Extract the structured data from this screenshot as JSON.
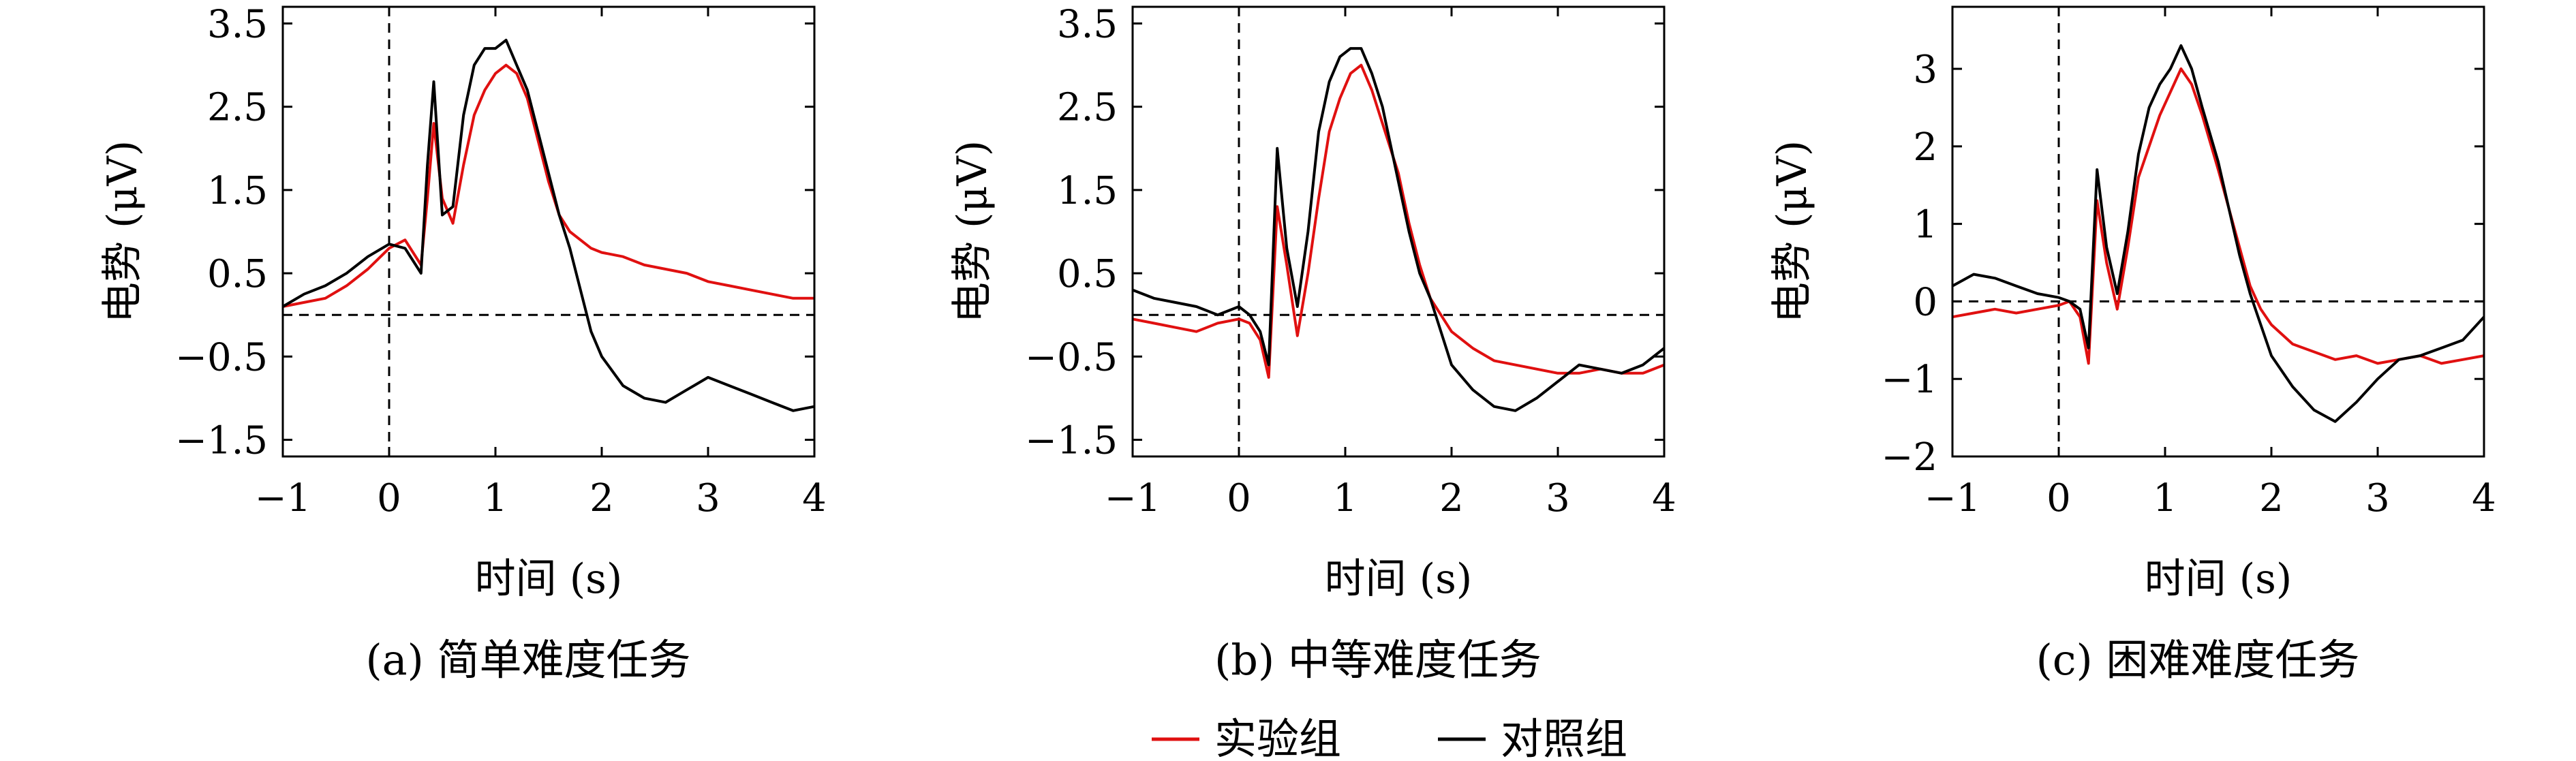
{
  "legend": [
    {
      "name": "实验组",
      "color": "#e01010"
    },
    {
      "name": "对照组",
      "color": "#000000"
    }
  ],
  "chart_data": [
    {
      "type": "line",
      "caption": "(a) 简单难度任务",
      "xlabel": "时间 (s)",
      "ylabel": "电势 (μV)",
      "xlim": [
        -1,
        4
      ],
      "ylim": [
        -1.7,
        3.7
      ],
      "xticks": [
        -1,
        0,
        1,
        2,
        3,
        4
      ],
      "xtick_labels": [
        "−1",
        "0",
        "1",
        "2",
        "3",
        "4"
      ],
      "yticks": [
        -1.5,
        -0.5,
        0.5,
        1.5,
        2.5,
        3.5
      ],
      "ytick_labels": [
        "−1.5",
        "−0.5",
        "0.5",
        "1.5",
        "2.5",
        "3.5"
      ],
      "hline": 0,
      "vline": 0,
      "series": [
        {
          "name": "实验组",
          "color": "#e01010",
          "x": [
            -1,
            -0.8,
            -0.6,
            -0.4,
            -0.2,
            0,
            0.15,
            0.3,
            0.36,
            0.42,
            0.5,
            0.6,
            0.7,
            0.8,
            0.9,
            1.0,
            1.1,
            1.2,
            1.3,
            1.4,
            1.5,
            1.6,
            1.7,
            1.8,
            1.9,
            2.0,
            2.2,
            2.4,
            2.6,
            2.8,
            3.0,
            3.2,
            3.4,
            3.6,
            3.8,
            4.0
          ],
          "y": [
            0.1,
            0.15,
            0.2,
            0.35,
            0.55,
            0.8,
            0.9,
            0.6,
            1.4,
            2.3,
            1.4,
            1.1,
            1.8,
            2.4,
            2.7,
            2.9,
            3.0,
            2.9,
            2.6,
            2.1,
            1.6,
            1.2,
            1.0,
            0.9,
            0.8,
            0.75,
            0.7,
            0.6,
            0.55,
            0.5,
            0.4,
            0.35,
            0.3,
            0.25,
            0.2,
            0.2
          ]
        },
        {
          "name": "对照组",
          "color": "#000000",
          "x": [
            -1,
            -0.8,
            -0.6,
            -0.4,
            -0.2,
            0,
            0.15,
            0.3,
            0.36,
            0.42,
            0.5,
            0.6,
            0.7,
            0.8,
            0.9,
            1.0,
            1.1,
            1.2,
            1.3,
            1.4,
            1.5,
            1.6,
            1.7,
            1.8,
            1.9,
            2.0,
            2.2,
            2.4,
            2.6,
            2.8,
            3.0,
            3.2,
            3.4,
            3.6,
            3.8,
            4.0
          ],
          "y": [
            0.1,
            0.25,
            0.35,
            0.5,
            0.7,
            0.85,
            0.8,
            0.5,
            1.8,
            2.8,
            1.2,
            1.3,
            2.4,
            3.0,
            3.2,
            3.2,
            3.3,
            3.0,
            2.7,
            2.2,
            1.7,
            1.2,
            0.8,
            0.3,
            -0.2,
            -0.5,
            -0.85,
            -1.0,
            -1.05,
            -0.9,
            -0.75,
            -0.85,
            -0.95,
            -1.05,
            -1.15,
            -1.1
          ]
        }
      ]
    },
    {
      "type": "line",
      "caption": "(b) 中等难度任务",
      "xlabel": "时间 (s)",
      "ylabel": "电势 (μV)",
      "xlim": [
        -1,
        4
      ],
      "ylim": [
        -1.7,
        3.7
      ],
      "xticks": [
        -1,
        0,
        1,
        2,
        3,
        4
      ],
      "xtick_labels": [
        "−1",
        "0",
        "1",
        "2",
        "3",
        "4"
      ],
      "yticks": [
        -1.5,
        -0.5,
        0.5,
        1.5,
        2.5,
        3.5
      ],
      "ytick_labels": [
        "−1.5",
        "−0.5",
        "0.5",
        "1.5",
        "2.5",
        "3.5"
      ],
      "hline": 0,
      "vline": 0,
      "series": [
        {
          "name": "实验组",
          "color": "#e01010",
          "x": [
            -1,
            -0.8,
            -0.6,
            -0.4,
            -0.2,
            0,
            0.1,
            0.2,
            0.28,
            0.36,
            0.45,
            0.55,
            0.65,
            0.75,
            0.85,
            0.95,
            1.05,
            1.15,
            1.25,
            1.35,
            1.5,
            1.6,
            1.7,
            1.8,
            1.9,
            2.0,
            2.2,
            2.4,
            2.6,
            2.8,
            3.0,
            3.2,
            3.4,
            3.6,
            3.8,
            4.0
          ],
          "y": [
            -0.05,
            -0.1,
            -0.15,
            -0.2,
            -0.1,
            -0.05,
            -0.1,
            -0.3,
            -0.75,
            1.3,
            0.6,
            -0.25,
            0.5,
            1.4,
            2.2,
            2.6,
            2.9,
            3.0,
            2.7,
            2.3,
            1.7,
            1.1,
            0.6,
            0.2,
            0.0,
            -0.2,
            -0.4,
            -0.55,
            -0.6,
            -0.65,
            -0.7,
            -0.7,
            -0.65,
            -0.7,
            -0.7,
            -0.6
          ]
        },
        {
          "name": "对照组",
          "color": "#000000",
          "x": [
            -1,
            -0.8,
            -0.6,
            -0.4,
            -0.2,
            0,
            0.1,
            0.2,
            0.28,
            0.36,
            0.45,
            0.55,
            0.65,
            0.75,
            0.85,
            0.95,
            1.05,
            1.15,
            1.25,
            1.35,
            1.5,
            1.6,
            1.7,
            1.8,
            1.9,
            2.0,
            2.2,
            2.4,
            2.6,
            2.8,
            3.0,
            3.2,
            3.4,
            3.6,
            3.8,
            4.0
          ],
          "y": [
            0.3,
            0.2,
            0.15,
            0.1,
            0.0,
            0.1,
            0.0,
            -0.2,
            -0.6,
            2.0,
            0.8,
            0.1,
            1.0,
            2.2,
            2.8,
            3.1,
            3.2,
            3.2,
            2.9,
            2.5,
            1.6,
            1.0,
            0.5,
            0.2,
            -0.2,
            -0.6,
            -0.9,
            -1.1,
            -1.15,
            -1.0,
            -0.8,
            -0.6,
            -0.65,
            -0.7,
            -0.6,
            -0.4
          ]
        }
      ]
    },
    {
      "type": "line",
      "caption": "(c) 困难难度任务",
      "xlabel": "时间 (s)",
      "ylabel": "电势 (μV)",
      "xlim": [
        -1,
        4
      ],
      "ylim": [
        -2,
        3.8
      ],
      "xticks": [
        -1,
        0,
        1,
        2,
        3,
        4
      ],
      "xtick_labels": [
        "−1",
        "0",
        "1",
        "2",
        "3",
        "4"
      ],
      "yticks": [
        -2,
        -1,
        0,
        1,
        2,
        3
      ],
      "ytick_labels": [
        "−2",
        "−1",
        "0",
        "1",
        "2",
        "3"
      ],
      "hline": 0,
      "vline": 0,
      "series": [
        {
          "name": "实验组",
          "color": "#e01010",
          "x": [
            -1,
            -0.8,
            -0.6,
            -0.4,
            -0.2,
            0,
            0.1,
            0.2,
            0.28,
            0.36,
            0.45,
            0.55,
            0.65,
            0.75,
            0.85,
            0.95,
            1.05,
            1.15,
            1.25,
            1.35,
            1.5,
            1.6,
            1.7,
            1.8,
            1.9,
            2.0,
            2.2,
            2.4,
            2.6,
            2.8,
            3.0,
            3.2,
            3.4,
            3.6,
            3.8,
            4.0
          ],
          "y": [
            -0.2,
            -0.15,
            -0.1,
            -0.15,
            -0.1,
            -0.05,
            0.0,
            -0.2,
            -0.8,
            1.3,
            0.5,
            -0.1,
            0.7,
            1.6,
            2.0,
            2.4,
            2.7,
            3.0,
            2.8,
            2.4,
            1.7,
            1.2,
            0.7,
            0.2,
            -0.1,
            -0.3,
            -0.55,
            -0.65,
            -0.75,
            -0.7,
            -0.8,
            -0.75,
            -0.7,
            -0.8,
            -0.75,
            -0.7
          ]
        },
        {
          "name": "对照组",
          "color": "#000000",
          "x": [
            -1,
            -0.8,
            -0.6,
            -0.4,
            -0.2,
            0,
            0.1,
            0.2,
            0.28,
            0.36,
            0.45,
            0.55,
            0.65,
            0.75,
            0.85,
            0.95,
            1.05,
            1.15,
            1.25,
            1.35,
            1.5,
            1.6,
            1.7,
            1.8,
            1.9,
            2.0,
            2.2,
            2.4,
            2.6,
            2.8,
            3.0,
            3.2,
            3.4,
            3.6,
            3.8,
            4.0
          ],
          "y": [
            0.2,
            0.35,
            0.3,
            0.2,
            0.1,
            0.05,
            0.0,
            -0.1,
            -0.6,
            1.7,
            0.7,
            0.1,
            0.9,
            1.9,
            2.5,
            2.8,
            3.0,
            3.3,
            3.0,
            2.5,
            1.8,
            1.2,
            0.6,
            0.1,
            -0.3,
            -0.7,
            -1.1,
            -1.4,
            -1.55,
            -1.3,
            -1.0,
            -0.75,
            -0.7,
            -0.6,
            -0.5,
            -0.2
          ]
        }
      ]
    }
  ]
}
